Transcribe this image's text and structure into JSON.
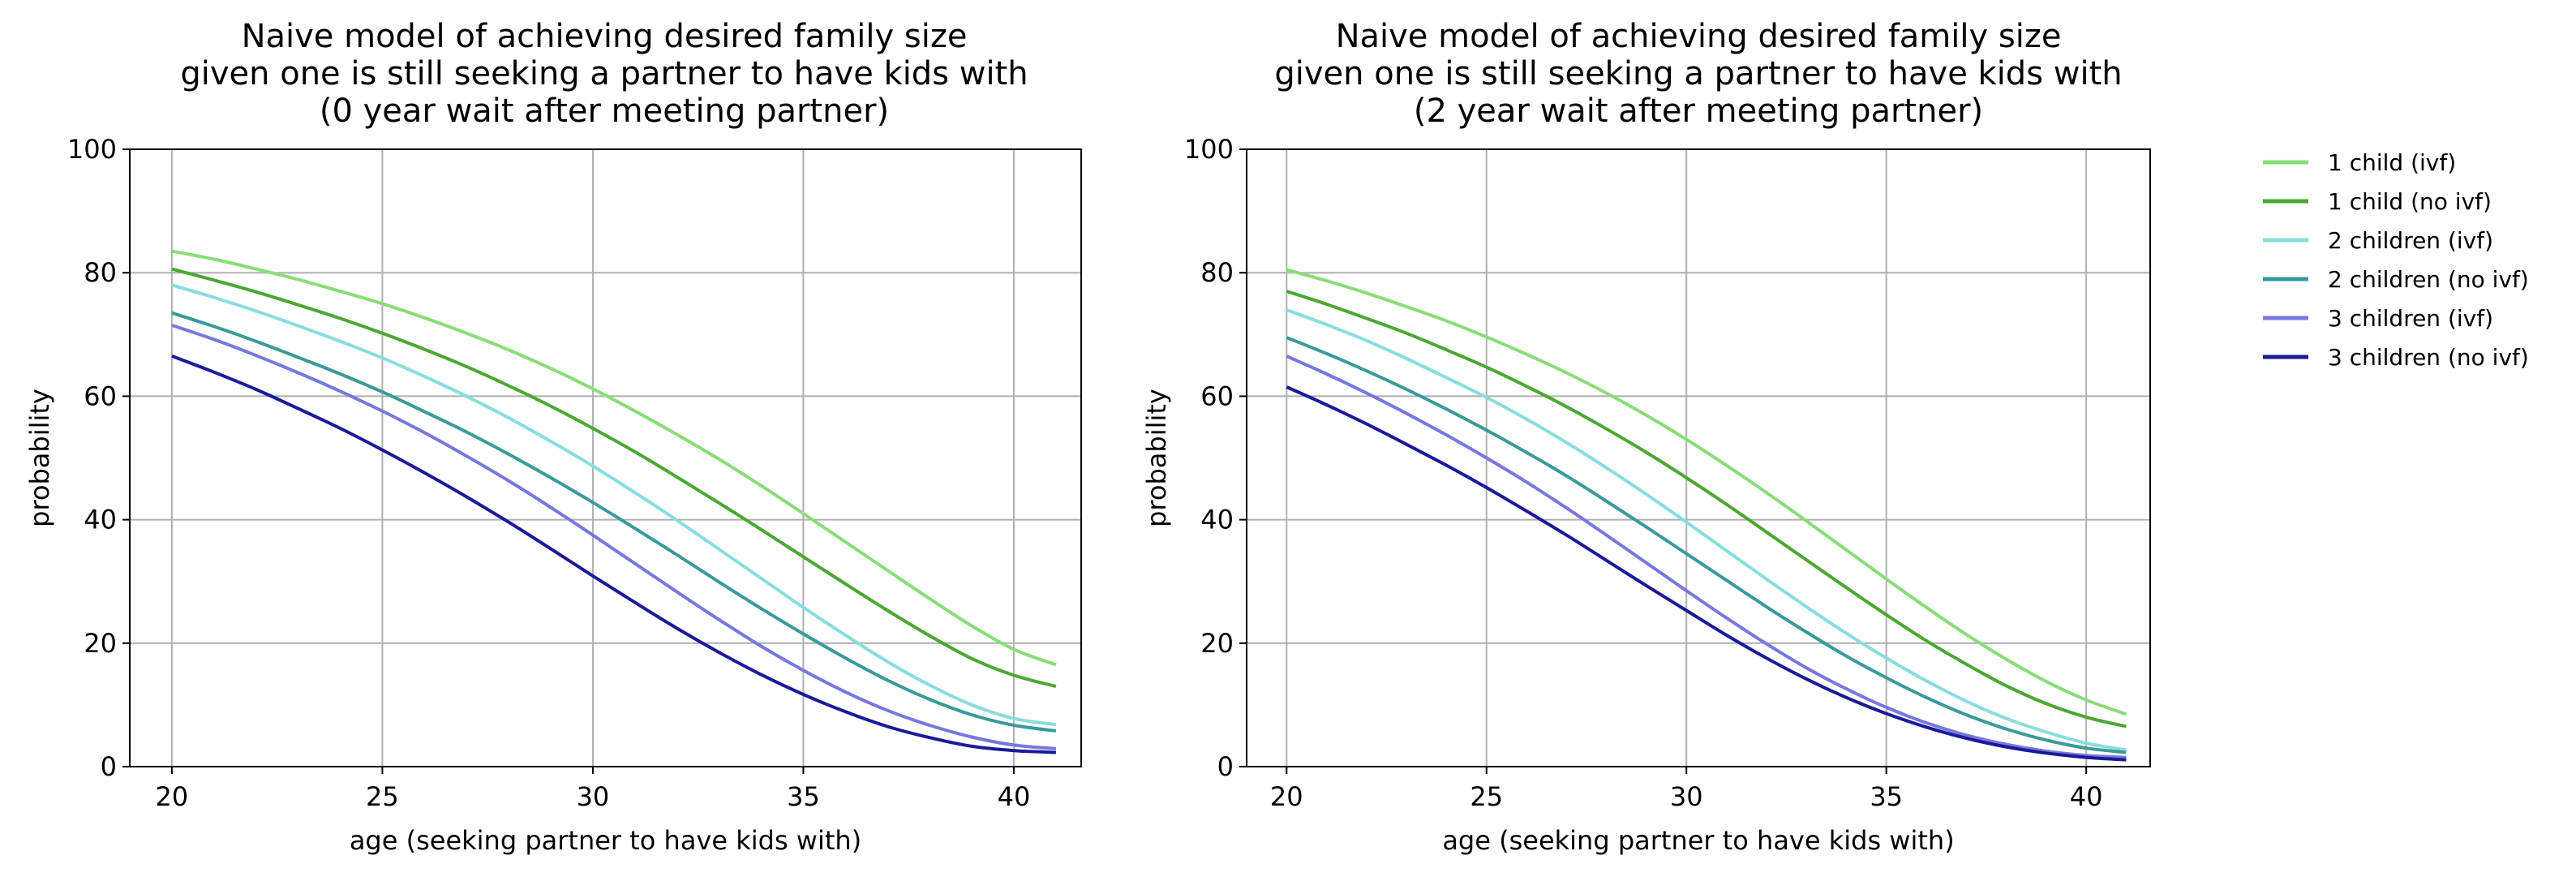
{
  "chart_data": [
    {
      "type": "line",
      "title": [
        "Naive model of achieving desired family size",
        "given one is still seeking a partner to have kids with",
        "(0 year wait after meeting partner)"
      ],
      "xlabel": "age (seeking partner to have kids with)",
      "ylabel": "probability",
      "xlim": [
        19,
        41.6
      ],
      "ylim": [
        0,
        100
      ],
      "xticks": [
        20,
        25,
        30,
        35,
        40
      ],
      "yticks": [
        0,
        20,
        40,
        60,
        80,
        100
      ],
      "grid": true,
      "x": [
        20,
        21,
        22,
        23,
        24,
        25,
        26,
        27,
        28,
        29,
        30,
        31,
        32,
        33,
        34,
        35,
        36,
        37,
        38,
        39,
        40,
        41
      ],
      "series": [
        {
          "name": "1 child (ivf)",
          "color": "#88dd77",
          "values": [
            83.5,
            82.2,
            80.6,
            78.9,
            77.0,
            75.0,
            72.7,
            70.2,
            67.5,
            64.5,
            61.2,
            57.6,
            53.8,
            49.8,
            45.5,
            41.0,
            36.4,
            31.8,
            27.2,
            22.8,
            19.0,
            16.5
          ]
        },
        {
          "name": "1 child (no ivf)",
          "color": "#4aa832",
          "values": [
            80.6,
            78.8,
            76.9,
            74.8,
            72.6,
            70.2,
            67.6,
            64.8,
            61.7,
            58.4,
            54.8,
            51.0,
            46.9,
            42.7,
            38.4,
            34.0,
            29.6,
            25.3,
            21.2,
            17.5,
            14.8,
            13.0
          ]
        },
        {
          "name": "2 children (ivf)",
          "color": "#88dddd",
          "values": [
            78.0,
            76.0,
            73.8,
            71.4,
            68.9,
            66.2,
            63.2,
            60.0,
            56.5,
            52.7,
            48.7,
            44.4,
            39.9,
            35.2,
            30.5,
            25.8,
            21.3,
            17.0,
            13.2,
            10.0,
            7.8,
            6.8
          ]
        },
        {
          "name": "2 children (no ivf)",
          "color": "#3a9a9a",
          "values": [
            73.5,
            71.3,
            68.9,
            66.3,
            63.6,
            60.7,
            57.5,
            54.2,
            50.6,
            46.8,
            42.8,
            38.6,
            34.3,
            29.9,
            25.6,
            21.5,
            17.6,
            14.0,
            10.9,
            8.4,
            6.7,
            5.8
          ]
        },
        {
          "name": "3 children (ivf)",
          "color": "#7777dd",
          "values": [
            71.5,
            69.2,
            66.6,
            63.8,
            60.8,
            57.6,
            54.1,
            50.3,
            46.3,
            42.0,
            37.5,
            32.9,
            28.3,
            23.8,
            19.5,
            15.6,
            12.1,
            9.1,
            6.7,
            4.8,
            3.5,
            2.9
          ]
        },
        {
          "name": "3 children (no ivf)",
          "color": "#1a1a99",
          "values": [
            66.5,
            63.9,
            61.1,
            58.0,
            54.8,
            51.3,
            47.6,
            43.7,
            39.6,
            35.3,
            30.9,
            26.6,
            22.4,
            18.5,
            14.9,
            11.7,
            8.9,
            6.5,
            4.7,
            3.3,
            2.6,
            2.3
          ]
        }
      ]
    },
    {
      "type": "line",
      "title": [
        "Naive model of achieving desired family size",
        "given one is still seeking a partner to have kids with",
        "(2 year wait after meeting partner)"
      ],
      "xlabel": "age (seeking partner to have kids with)",
      "ylabel": "probability",
      "xlim": [
        19,
        41.6
      ],
      "ylim": [
        0,
        100
      ],
      "xticks": [
        20,
        25,
        30,
        35,
        40
      ],
      "yticks": [
        0,
        20,
        40,
        60,
        80,
        100
      ],
      "grid": true,
      "x": [
        20,
        21,
        22,
        23,
        24,
        25,
        26,
        27,
        28,
        29,
        30,
        31,
        32,
        33,
        34,
        35,
        36,
        37,
        38,
        39,
        40,
        41
      ],
      "series": [
        {
          "name": "1 child (ivf)",
          "color": "#88dd77",
          "values": [
            80.5,
            78.7,
            76.7,
            74.5,
            72.2,
            69.6,
            66.8,
            63.8,
            60.5,
            56.9,
            53.0,
            48.8,
            44.4,
            39.8,
            35.1,
            30.4,
            25.8,
            21.4,
            17.4,
            13.8,
            10.8,
            8.5
          ]
        },
        {
          "name": "1 child (no ivf)",
          "color": "#4aa832",
          "values": [
            77.0,
            74.9,
            72.6,
            70.2,
            67.5,
            64.7,
            61.6,
            58.3,
            54.7,
            50.9,
            46.8,
            42.5,
            38.0,
            33.5,
            29.0,
            24.6,
            20.4,
            16.6,
            13.1,
            10.2,
            8.0,
            6.5
          ]
        },
        {
          "name": "2 children (ivf)",
          "color": "#88dddd",
          "values": [
            74.0,
            71.6,
            69.0,
            66.1,
            63.0,
            59.8,
            56.3,
            52.5,
            48.4,
            44.1,
            39.6,
            35.0,
            30.4,
            25.9,
            21.6,
            17.6,
            13.9,
            10.6,
            7.8,
            5.6,
            3.8,
            2.7
          ]
        },
        {
          "name": "2 children (no ivf)",
          "color": "#3a9a9a",
          "values": [
            69.5,
            66.9,
            64.1,
            61.1,
            57.9,
            54.5,
            50.9,
            47.1,
            43.0,
            38.8,
            34.5,
            30.2,
            25.9,
            21.8,
            17.9,
            14.4,
            11.2,
            8.4,
            6.1,
            4.3,
            3.0,
            2.3
          ]
        },
        {
          "name": "3 children (ivf)",
          "color": "#7777dd",
          "values": [
            66.5,
            63.6,
            60.5,
            57.2,
            53.7,
            50.0,
            46.1,
            41.9,
            37.5,
            33.0,
            28.5,
            24.1,
            19.9,
            16.0,
            12.6,
            9.6,
            7.1,
            5.1,
            3.6,
            2.5,
            1.8,
            1.5
          ]
        },
        {
          "name": "3 children (no ivf)",
          "color": "#1a1a99",
          "values": [
            61.5,
            58.6,
            55.5,
            52.2,
            48.8,
            45.2,
            41.4,
            37.5,
            33.4,
            29.3,
            25.3,
            21.3,
            17.6,
            14.2,
            11.2,
            8.6,
            6.4,
            4.6,
            3.2,
            2.2,
            1.5,
            1.1
          ]
        }
      ]
    }
  ]
}
